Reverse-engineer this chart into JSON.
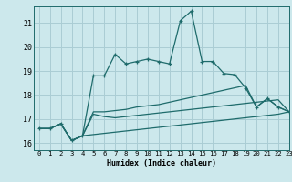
{
  "xlabel": "Humidex (Indice chaleur)",
  "background_color": "#cce8ec",
  "grid_color": "#aacdd4",
  "line_color": "#1e6b6b",
  "xlim": [
    -0.5,
    23
  ],
  "ylim": [
    15.7,
    21.7
  ],
  "yticks": [
    16,
    17,
    18,
    19,
    20,
    21
  ],
  "xticks": [
    0,
    1,
    2,
    3,
    4,
    5,
    6,
    7,
    8,
    9,
    10,
    11,
    12,
    13,
    14,
    15,
    16,
    17,
    18,
    19,
    20,
    21,
    22,
    23
  ],
  "series_marked": [
    16.6,
    16.6,
    16.8,
    16.1,
    16.3,
    18.8,
    18.8,
    19.7,
    19.3,
    19.4,
    19.5,
    19.4,
    19.3,
    21.1,
    21.5,
    19.4,
    19.4,
    18.9,
    18.85,
    18.3,
    17.5,
    17.85,
    17.5,
    17.3
  ],
  "series_upper": [
    16.6,
    16.6,
    16.8,
    16.1,
    16.3,
    17.3,
    17.3,
    17.35,
    17.4,
    17.5,
    17.55,
    17.6,
    17.7,
    17.8,
    17.9,
    18.0,
    18.1,
    18.2,
    18.3,
    18.4,
    17.5,
    17.85,
    17.5,
    17.3
  ],
  "series_mid": [
    16.6,
    16.6,
    16.8,
    16.1,
    16.3,
    17.2,
    17.1,
    17.05,
    17.1,
    17.15,
    17.2,
    17.25,
    17.3,
    17.35,
    17.4,
    17.45,
    17.5,
    17.55,
    17.6,
    17.65,
    17.7,
    17.75,
    17.8,
    17.3
  ],
  "series_lower": [
    16.6,
    16.6,
    16.8,
    16.1,
    16.3,
    16.35,
    16.4,
    16.45,
    16.5,
    16.55,
    16.6,
    16.65,
    16.7,
    16.75,
    16.8,
    16.85,
    16.9,
    16.95,
    17.0,
    17.05,
    17.1,
    17.15,
    17.2,
    17.3
  ]
}
